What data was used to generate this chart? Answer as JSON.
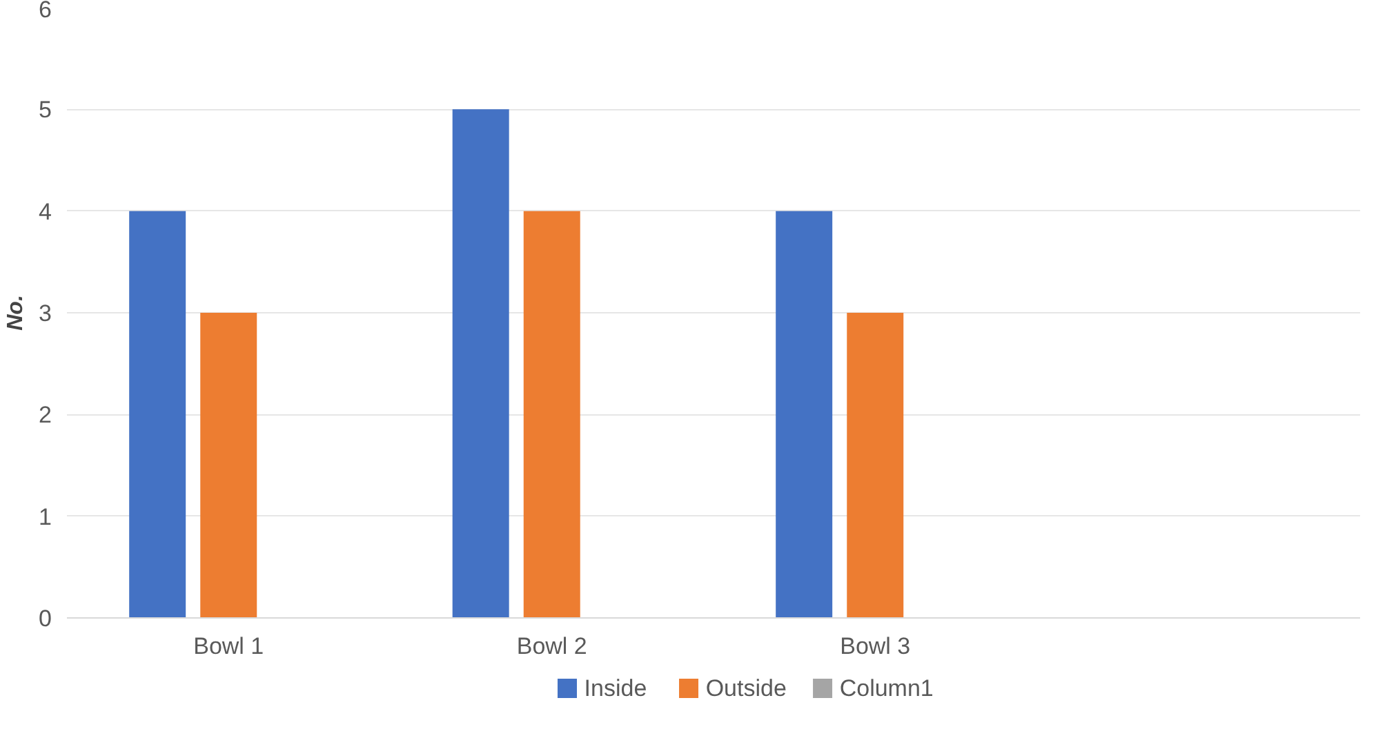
{
  "chart_data": {
    "type": "bar",
    "ylabel": "No.",
    "categories": [
      "Bowl 1",
      "Bowl 2",
      "Bowl 3",
      null
    ],
    "series": [
      {
        "name": "Inside",
        "color": "#4472c4",
        "values": [
          4,
          5,
          4,
          null
        ]
      },
      {
        "name": "Outside",
        "color": "#ed7d31",
        "values": [
          3,
          4,
          3,
          null
        ]
      },
      {
        "name": "Column1",
        "color": "#a5a5a5",
        "values": [
          null,
          null,
          null,
          null
        ]
      }
    ],
    "ylim": [
      0,
      6
    ],
    "yticks": [
      0,
      1,
      2,
      3,
      4,
      5,
      6
    ],
    "grid": "y",
    "legend": "bottom"
  }
}
